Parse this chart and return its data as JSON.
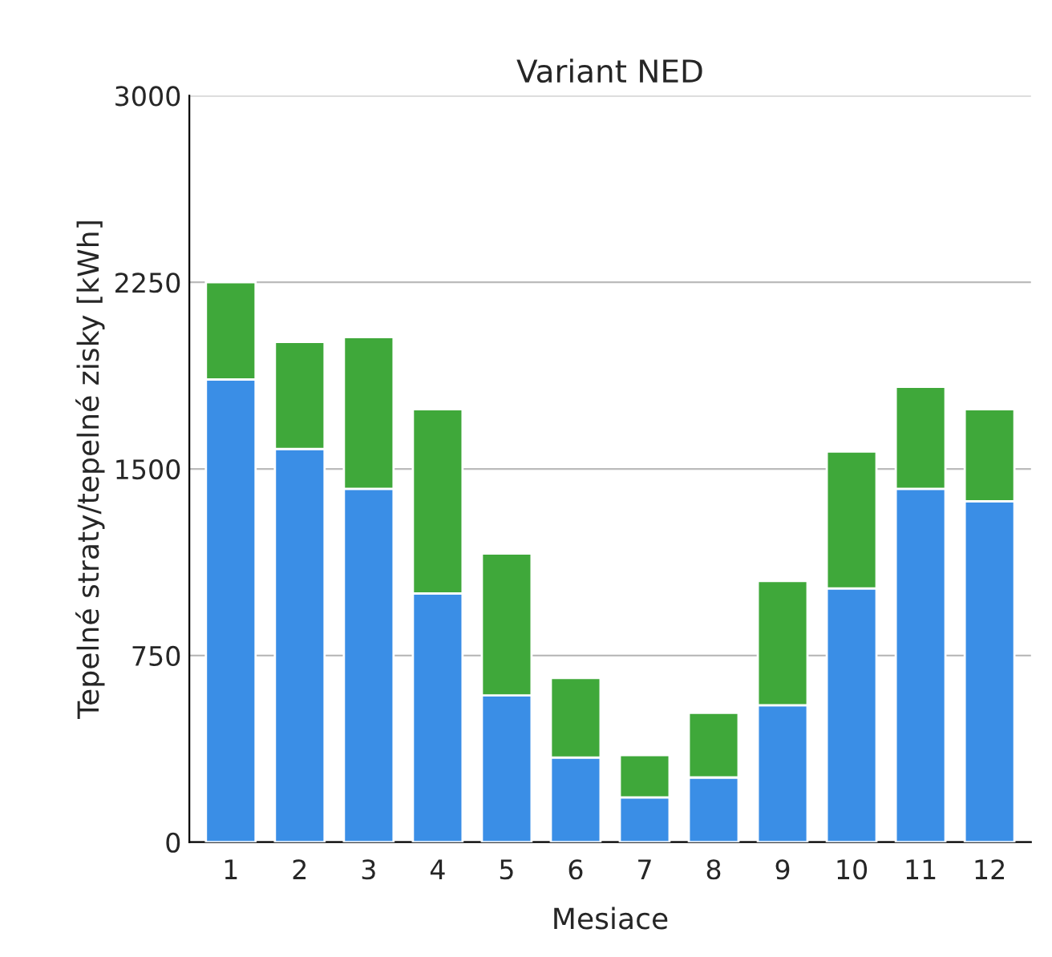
{
  "chart_data": {
    "type": "bar",
    "title": "Variant NED",
    "xlabel": "Mesiace",
    "ylabel": "Tepelné straty/tepelné zisky [kWh]",
    "categories": [
      "1",
      "2",
      "3",
      "4",
      "5",
      "6",
      "7",
      "8",
      "9",
      "10",
      "11",
      "12"
    ],
    "stacked": true,
    "series": [
      {
        "color": "#3a8ee6",
        "values": [
          1860,
          1580,
          1420,
          1000,
          590,
          340,
          180,
          260,
          550,
          1020,
          1420,
          1370
        ]
      },
      {
        "color": "#3fa83a",
        "values": [
          390,
          430,
          610,
          740,
          570,
          320,
          170,
          260,
          500,
          550,
          410,
          370
        ]
      }
    ],
    "ylim": [
      0,
      3000
    ],
    "yticks": [
      0,
      750,
      1500,
      2250,
      3000
    ],
    "grid": "y",
    "legend": false
  }
}
